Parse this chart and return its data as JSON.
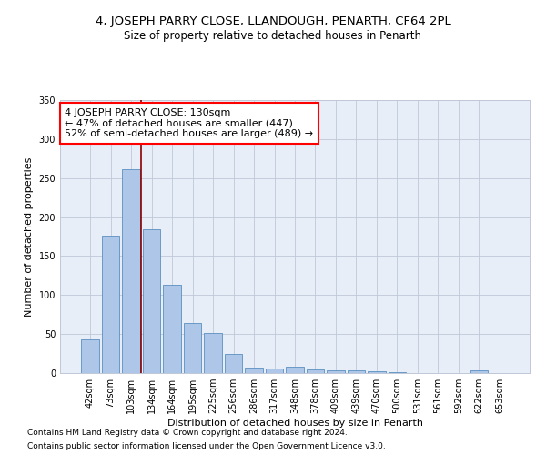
{
  "title": "4, JOSEPH PARRY CLOSE, LLANDOUGH, PENARTH, CF64 2PL",
  "subtitle": "Size of property relative to detached houses in Penarth",
  "xlabel": "Distribution of detached houses by size in Penarth",
  "ylabel": "Number of detached properties",
  "bar_color": "#aec6e8",
  "bar_edge_color": "#5a8fc0",
  "background_color": "#e8eef8",
  "grid_color": "#c0c8d8",
  "annotation_box_text": "4 JOSEPH PARRY CLOSE: 130sqm\n← 47% of detached houses are smaller (447)\n52% of semi-detached houses are larger (489) →",
  "vline_index": 3,
  "vline_color": "#8b0000",
  "categories": [
    "42sqm",
    "73sqm",
    "103sqm",
    "134sqm",
    "164sqm",
    "195sqm",
    "225sqm",
    "256sqm",
    "286sqm",
    "317sqm",
    "348sqm",
    "378sqm",
    "409sqm",
    "439sqm",
    "470sqm",
    "500sqm",
    "531sqm",
    "561sqm",
    "592sqm",
    "622sqm",
    "653sqm"
  ],
  "values": [
    43,
    176,
    261,
    184,
    113,
    64,
    51,
    25,
    7,
    6,
    8,
    5,
    4,
    3,
    2,
    1,
    0,
    0,
    0,
    3,
    0
  ],
  "ylim": [
    0,
    350
  ],
  "yticks": [
    0,
    50,
    100,
    150,
    200,
    250,
    300,
    350
  ],
  "footer_line1": "Contains HM Land Registry data © Crown copyright and database right 2024.",
  "footer_line2": "Contains public sector information licensed under the Open Government Licence v3.0.",
  "title_fontsize": 9.5,
  "subtitle_fontsize": 8.5,
  "xlabel_fontsize": 8,
  "ylabel_fontsize": 8,
  "tick_fontsize": 7,
  "footer_fontsize": 6.5,
  "annotation_fontsize": 8
}
